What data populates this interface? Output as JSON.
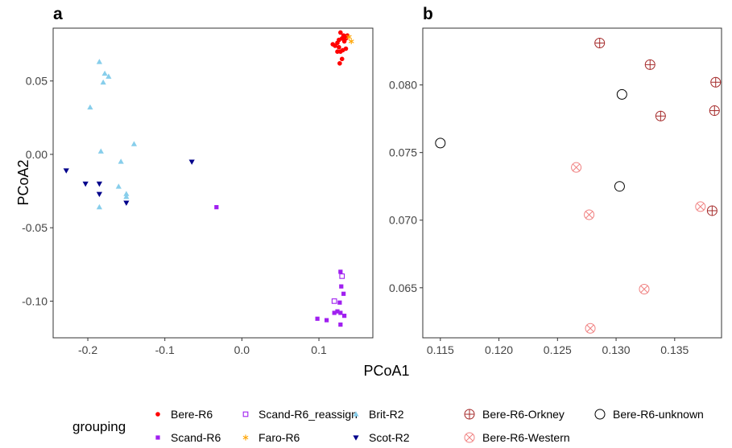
{
  "chart_data": [
    {
      "panel": "a",
      "type": "scatter",
      "xlabel": "PCoA1",
      "ylabel": "PCoA2",
      "xlim": [
        -0.245,
        0.17
      ],
      "ylim": [
        -0.125,
        0.086
      ],
      "xticks": [
        -0.2,
        -0.1,
        0.0,
        0.1
      ],
      "xtick_labels": [
        "-0.2",
        "-0.1",
        "0.0",
        "0.1"
      ],
      "yticks": [
        0.05,
        0.0,
        -0.05,
        -0.1
      ],
      "ytick_labels": [
        "0.05",
        "0.00",
        "-0.05",
        "-0.10"
      ],
      "grid": false,
      "series": [
        {
          "name": "Bere-R6",
          "marker": "circle",
          "color": "#ff0000",
          "points": [
            [
              0.128,
              0.083
            ],
            [
              0.132,
              0.081
            ],
            [
              0.135,
              0.079
            ],
            [
              0.13,
              0.079
            ],
            [
              0.126,
              0.078
            ],
            [
              0.137,
              0.081
            ],
            [
              0.124,
              0.076
            ],
            [
              0.121,
              0.074
            ],
            [
              0.118,
              0.075
            ],
            [
              0.133,
              0.077
            ],
            [
              0.126,
              0.073
            ],
            [
              0.131,
              0.071
            ],
            [
              0.135,
              0.072
            ],
            [
              0.128,
              0.07
            ],
            [
              0.124,
              0.07
            ],
            [
              0.13,
              0.065
            ],
            [
              0.127,
              0.062
            ]
          ]
        },
        {
          "name": "Faro-R6",
          "marker": "asterisk",
          "color": "#ffa500",
          "points": [
            [
              0.139,
              0.08
            ],
            [
              0.142,
              0.077
            ]
          ]
        },
        {
          "name": "Scand-R6",
          "marker": "square",
          "color": "#a020f0",
          "points": [
            [
              -0.033,
              -0.036
            ],
            [
              0.128,
              -0.08
            ],
            [
              0.129,
              -0.09
            ],
            [
              0.132,
              -0.095
            ],
            [
              0.127,
              -0.101
            ],
            [
              0.124,
              -0.107
            ],
            [
              0.128,
              -0.108
            ],
            [
              0.133,
              -0.11
            ],
            [
              0.12,
              -0.108
            ],
            [
              0.11,
              -0.113
            ],
            [
              0.098,
              -0.112
            ],
            [
              0.128,
              -0.116
            ]
          ]
        },
        {
          "name": "Scand-R6_reassign",
          "marker": "square-open",
          "color": "#a020f0",
          "points": [
            [
              0.13,
              -0.083
            ],
            [
              0.12,
              -0.1
            ]
          ]
        },
        {
          "name": "Brit-R2",
          "marker": "triangle",
          "color": "#87ceeb",
          "points": [
            [
              -0.185,
              0.063
            ],
            [
              -0.178,
              0.055
            ],
            [
              -0.173,
              0.053
            ],
            [
              -0.18,
              0.049
            ],
            [
              -0.197,
              0.032
            ],
            [
              -0.14,
              0.007
            ],
            [
              -0.183,
              0.002
            ],
            [
              -0.157,
              -0.005
            ],
            [
              -0.16,
              -0.022
            ],
            [
              -0.15,
              -0.027
            ],
            [
              -0.15,
              -0.029
            ],
            [
              -0.185,
              -0.036
            ]
          ]
        },
        {
          "name": "Scot-R2",
          "marker": "triangle-down",
          "color": "#00008b",
          "points": [
            [
              -0.228,
              -0.011
            ],
            [
              -0.065,
              -0.005
            ],
            [
              -0.203,
              -0.02
            ],
            [
              -0.185,
              -0.02
            ],
            [
              -0.185,
              -0.027
            ],
            [
              -0.15,
              -0.033
            ]
          ]
        }
      ]
    },
    {
      "panel": "b",
      "type": "scatter",
      "xlabel": "",
      "ylabel": "",
      "xlim": [
        0.1135,
        0.139
      ],
      "ylim": [
        0.0613,
        0.0842
      ],
      "xticks": [
        0.115,
        0.12,
        0.125,
        0.13,
        0.135
      ],
      "xtick_labels": [
        "0.115",
        "0.120",
        "0.125",
        "0.130",
        "0.135"
      ],
      "yticks": [
        0.08,
        0.075,
        0.07,
        0.065
      ],
      "ytick_labels": [
        "0.080",
        "0.075",
        "0.070",
        "0.065"
      ],
      "grid": false,
      "series": [
        {
          "name": "Bere-R6-Orkney",
          "marker": "circle-plus",
          "color": "#a52a2a",
          "points": [
            [
              0.1286,
              0.0831
            ],
            [
              0.1329,
              0.0815
            ],
            [
              0.1385,
              0.0802
            ],
            [
              0.1338,
              0.0777
            ],
            [
              0.1384,
              0.0781
            ],
            [
              0.1382,
              0.0707
            ]
          ]
        },
        {
          "name": "Bere-R6-unknown",
          "marker": "circle-open",
          "color": "#000000",
          "points": [
            [
              0.115,
              0.0757
            ],
            [
              0.1305,
              0.0793
            ],
            [
              0.1303,
              0.0725
            ]
          ]
        },
        {
          "name": "Bere-R6-Western",
          "marker": "circle-x",
          "color": "#f08080",
          "points": [
            [
              0.1266,
              0.0739
            ],
            [
              0.1277,
              0.0704
            ],
            [
              0.1372,
              0.071
            ],
            [
              0.1324,
              0.0649
            ],
            [
              0.1278,
              0.062
            ]
          ]
        }
      ]
    }
  ],
  "legend": {
    "title": "grouping",
    "placement": "bottom",
    "items": [
      {
        "label": "Bere-R6",
        "marker": "circle",
        "color": "#ff0000"
      },
      {
        "label": "Scand-R6",
        "marker": "square",
        "color": "#a020f0"
      },
      {
        "label": "Scand-R6_reassign",
        "marker": "square-open",
        "color": "#a020f0"
      },
      {
        "label": "Faro-R6",
        "marker": "asterisk",
        "color": "#ffa500"
      },
      {
        "label": "Brit-R2",
        "marker": "triangle",
        "color": "#87ceeb"
      },
      {
        "label": "Scot-R2",
        "marker": "triangle-down",
        "color": "#00008b"
      },
      {
        "label": "Bere-R6-Orkney",
        "marker": "circle-plus",
        "color": "#a52a2a"
      },
      {
        "label": "Bere-R6-Western",
        "marker": "circle-x",
        "color": "#f08080"
      },
      {
        "label": "Bere-R6-unknown",
        "marker": "circle-open",
        "color": "#000000"
      }
    ]
  }
}
